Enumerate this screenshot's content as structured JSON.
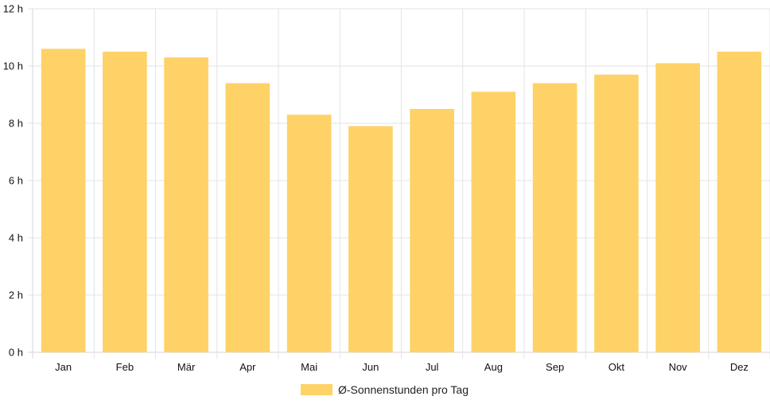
{
  "chart_data": {
    "type": "bar",
    "categories": [
      "Jan",
      "Feb",
      "Mär",
      "Apr",
      "Mai",
      "Jun",
      "Jul",
      "Aug",
      "Sep",
      "Okt",
      "Nov",
      "Dez"
    ],
    "series": [
      {
        "name": "Ø-Sonnenstunden pro Tag",
        "values": [
          10.6,
          10.5,
          10.3,
          9.4,
          8.3,
          7.9,
          8.5,
          9.1,
          9.4,
          9.7,
          10.1,
          10.5
        ]
      }
    ],
    "y_ticks": [
      "0 h",
      "2 h",
      "4 h",
      "6 h",
      "8 h",
      "10 h",
      "12 h"
    ],
    "y_tick_values": [
      0,
      2,
      4,
      6,
      8,
      10,
      12
    ],
    "ylim": [
      0,
      12
    ],
    "grid": true,
    "legend_position": "bottom",
    "colors": {
      "bar": "#fed267",
      "grid": "#e3e3e3",
      "axis": "#d6d6d6"
    }
  }
}
